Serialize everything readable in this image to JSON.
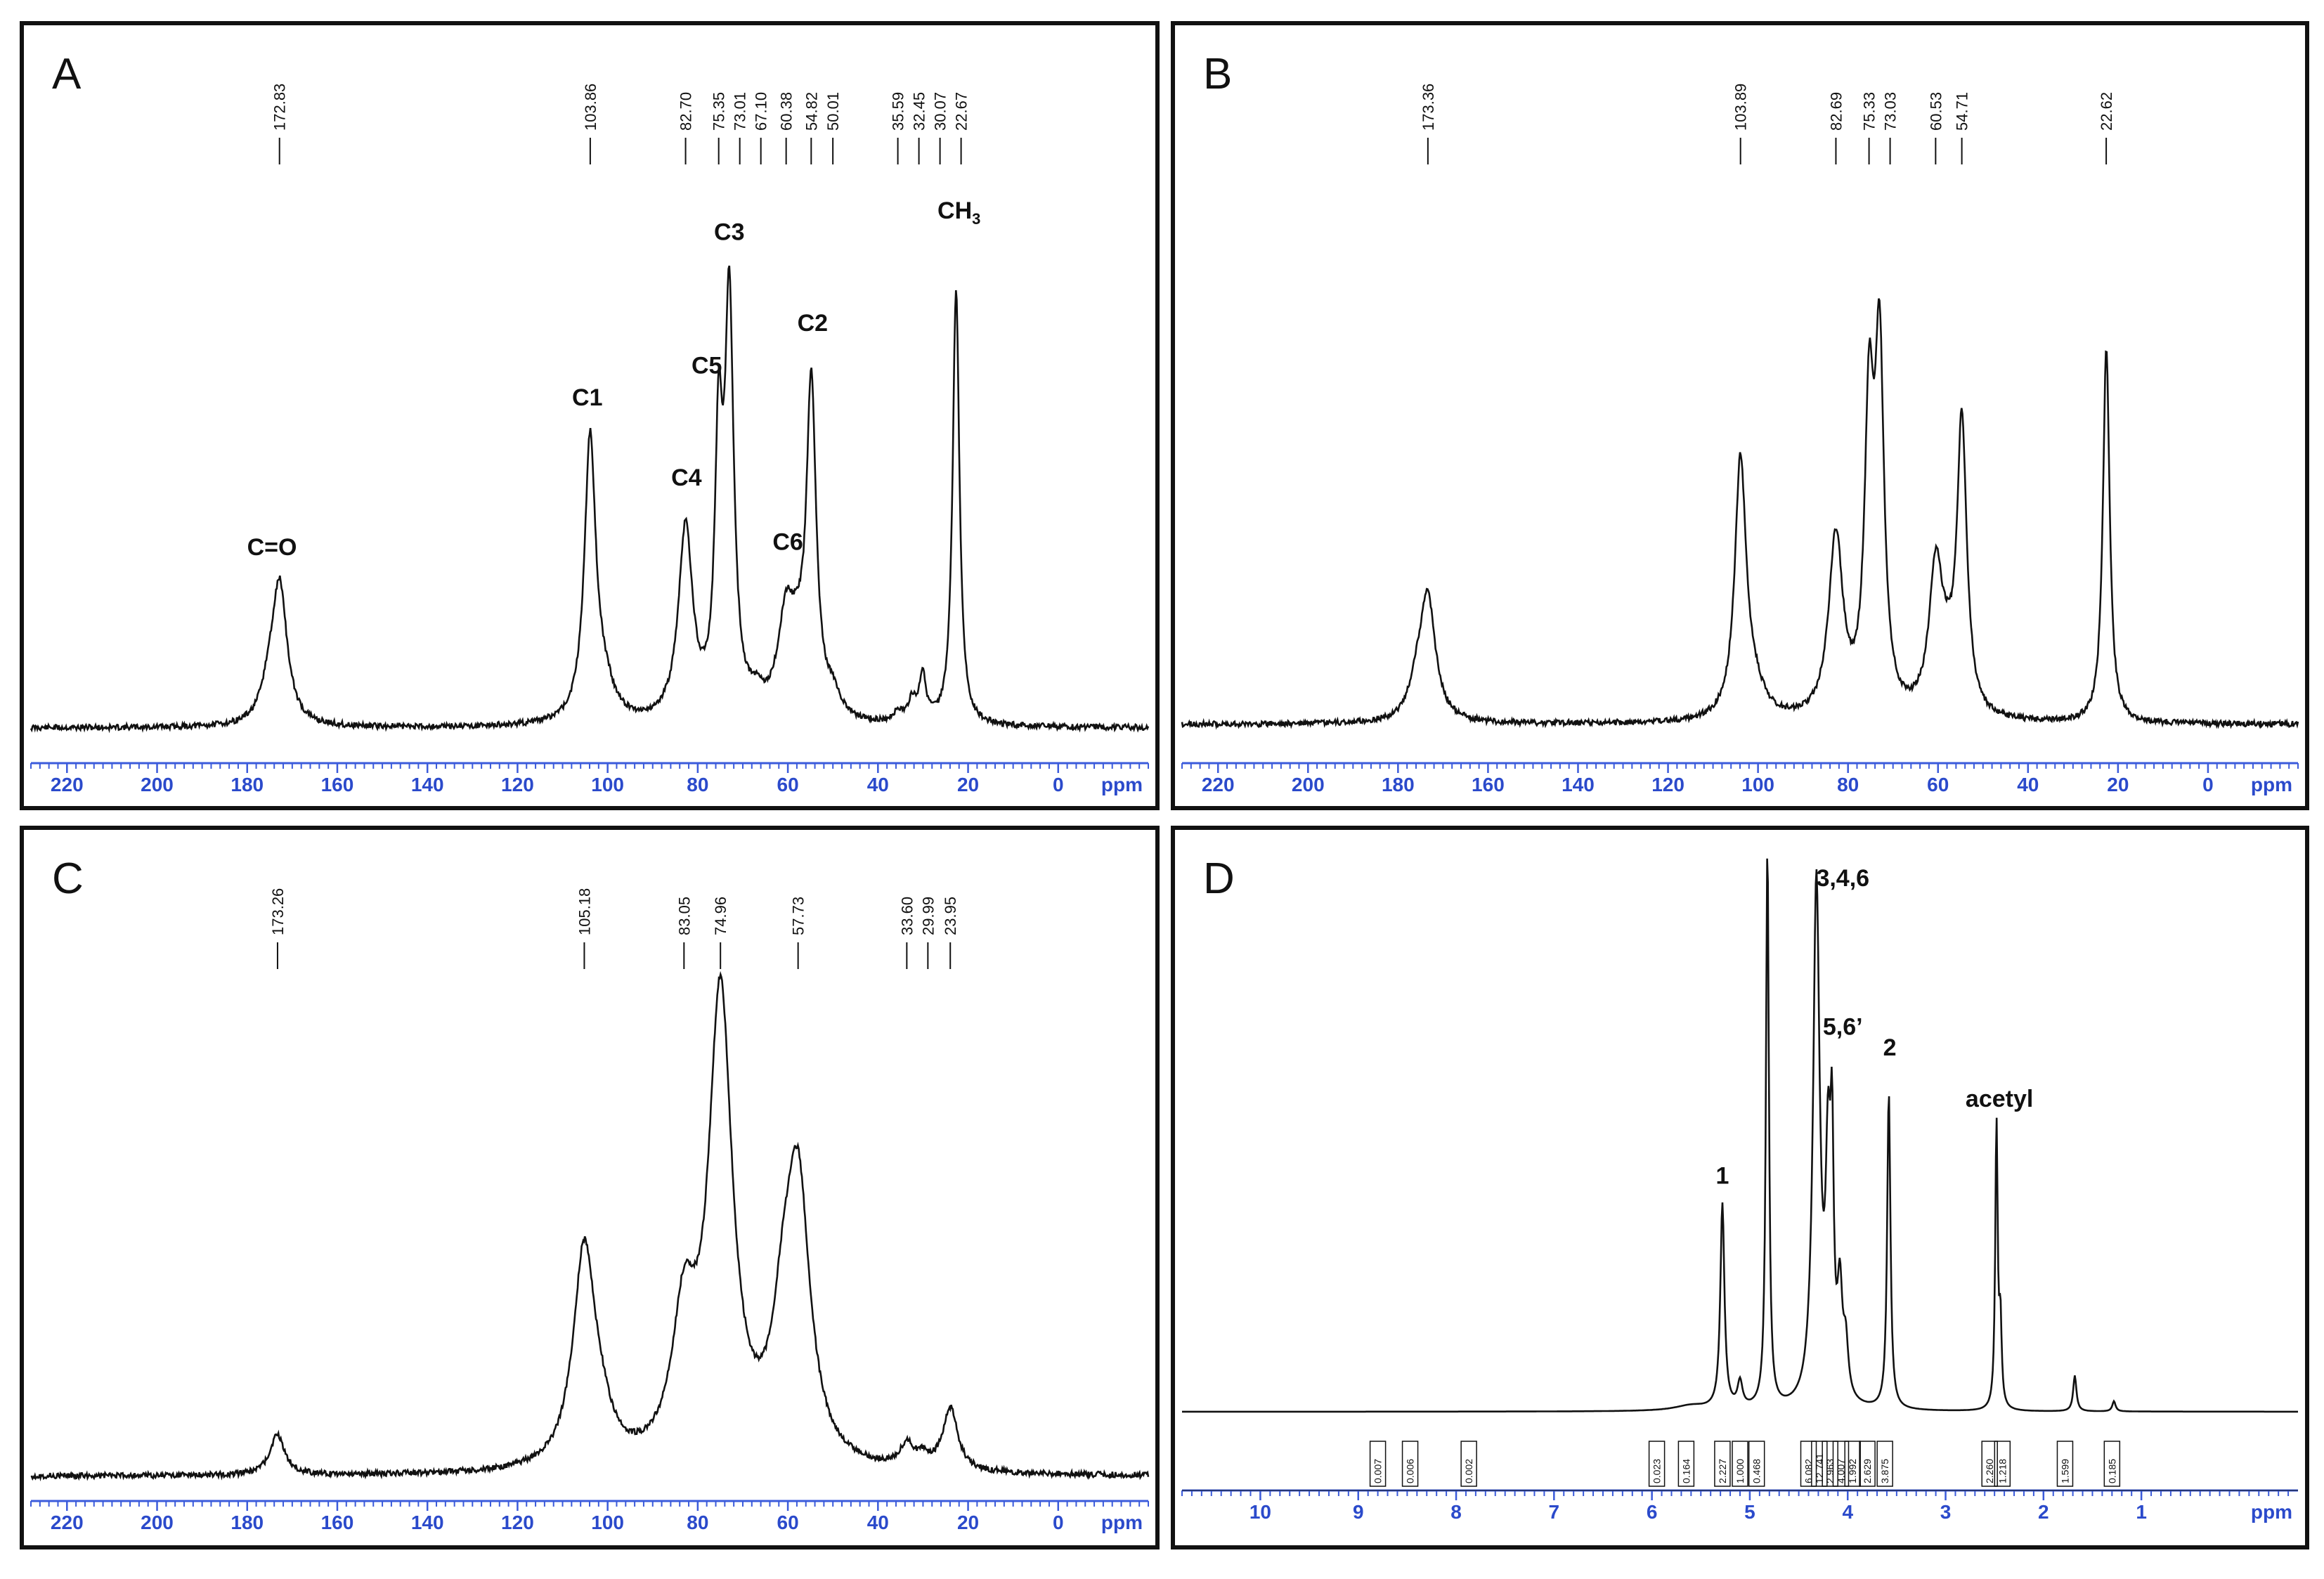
{
  "chart_data": [
    {
      "type": "line",
      "panel_label": "A",
      "xlim": [
        228,
        -20
      ],
      "ticks": [
        220,
        200,
        180,
        160,
        140,
        120,
        100,
        80,
        60,
        40,
        20,
        0
      ],
      "tick_labels": [
        "220",
        "200",
        "180",
        "160",
        "140",
        "120",
        "100",
        "80",
        "60",
        "40",
        "20",
        "0"
      ],
      "unit_label": "ppm",
      "peak_labels": [
        "172.83",
        "103.86",
        "82.70",
        "75.35",
        "73.01",
        "67.10",
        "60.38",
        "54.82",
        "50.01",
        "35.59",
        "32.45",
        "30.07",
        "22.67"
      ],
      "peak_positions": [
        172.83,
        103.86,
        82.7,
        75.35,
        73.01,
        67.1,
        60.38,
        54.82,
        50.01,
        35.59,
        32.45,
        30.07,
        22.67
      ],
      "annotations": [
        {
          "text": "C=O",
          "x": 174.5,
          "y": 0.3
        },
        {
          "text": "C1",
          "x": 104.5,
          "y": 0.58
        },
        {
          "text": "C4",
          "x": 82.5,
          "y": 0.43
        },
        {
          "text": "C5",
          "x": 78.0,
          "y": 0.64
        },
        {
          "text": "C3",
          "x": 73.0,
          "y": 0.89
        },
        {
          "text": "C6",
          "x": 60.0,
          "y": 0.31
        },
        {
          "text": "C2",
          "x": 54.5,
          "y": 0.72
        },
        {
          "text": "CH",
          "sub": "3",
          "x": 22.0,
          "y": 0.93
        }
      ],
      "peaks": [
        {
          "pos": 172.8,
          "h": 0.26,
          "w": 2.0
        },
        {
          "pos": 175.2,
          "h": 0.05,
          "w": 2.0
        },
        {
          "pos": 103.9,
          "h": 0.52,
          "w": 1.5
        },
        {
          "pos": 101.0,
          "h": 0.06,
          "w": 3.0
        },
        {
          "pos": 82.7,
          "h": 0.36,
          "w": 1.9
        },
        {
          "pos": 75.35,
          "h": 0.48,
          "w": 1.0
        },
        {
          "pos": 73.0,
          "h": 0.76,
          "w": 1.2
        },
        {
          "pos": 67.1,
          "h": 0.03,
          "w": 2.0
        },
        {
          "pos": 60.4,
          "h": 0.18,
          "w": 2.2
        },
        {
          "pos": 57.8,
          "h": 0.08,
          "w": 2.0
        },
        {
          "pos": 54.8,
          "h": 0.61,
          "w": 1.3
        },
        {
          "pos": 50.0,
          "h": 0.04,
          "w": 2.0
        },
        {
          "pos": 35.6,
          "h": 0.02,
          "w": 1.2
        },
        {
          "pos": 32.45,
          "h": 0.04,
          "w": 1.0
        },
        {
          "pos": 30.07,
          "h": 0.09,
          "w": 0.9
        },
        {
          "pos": 22.67,
          "h": 0.82,
          "w": 0.9
        }
      ]
    },
    {
      "type": "line",
      "panel_label": "B",
      "xlim": [
        228,
        -20
      ],
      "ticks": [
        220,
        200,
        180,
        160,
        140,
        120,
        100,
        80,
        60,
        40,
        20,
        0
      ],
      "tick_labels": [
        "220",
        "200",
        "180",
        "160",
        "140",
        "120",
        "100",
        "80",
        "60",
        "40",
        "20",
        "0"
      ],
      "unit_label": "ppm",
      "peak_labels": [
        "173.36",
        "103.89",
        "82.69",
        "75.33",
        "73.03",
        "60.53",
        "54.71",
        "22.62"
      ],
      "peak_positions": [
        173.36,
        103.89,
        82.69,
        75.33,
        73.03,
        60.53,
        54.71,
        22.62
      ],
      "annotations": [],
      "peaks": [
        {
          "pos": 173.4,
          "h": 0.23,
          "w": 2.1
        },
        {
          "pos": 175.8,
          "h": 0.05,
          "w": 2.0
        },
        {
          "pos": 103.9,
          "h": 0.48,
          "w": 1.5
        },
        {
          "pos": 101.0,
          "h": 0.05,
          "w": 3.0
        },
        {
          "pos": 82.7,
          "h": 0.34,
          "w": 1.9
        },
        {
          "pos": 75.3,
          "h": 0.55,
          "w": 1.2
        },
        {
          "pos": 73.0,
          "h": 0.66,
          "w": 1.2
        },
        {
          "pos": 60.5,
          "h": 0.27,
          "w": 1.8
        },
        {
          "pos": 58.0,
          "h": 0.06,
          "w": 2.0
        },
        {
          "pos": 54.7,
          "h": 0.55,
          "w": 1.3
        },
        {
          "pos": 22.6,
          "h": 0.71,
          "w": 0.9
        }
      ]
    },
    {
      "type": "line",
      "panel_label": "C",
      "xlim": [
        228,
        -20
      ],
      "ticks": [
        220,
        200,
        180,
        160,
        140,
        120,
        100,
        80,
        60,
        40,
        20,
        0
      ],
      "tick_labels": [
        "220",
        "200",
        "180",
        "160",
        "140",
        "120",
        "100",
        "80",
        "60",
        "40",
        "20",
        "0"
      ],
      "unit_label": "ppm",
      "peak_labels": [
        "173.26",
        "105.18",
        "83.05",
        "74.96",
        "57.73",
        "33.60",
        "29.99",
        "23.95"
      ],
      "peak_positions": [
        173.26,
        105.18,
        83.05,
        74.96,
        57.73,
        33.6,
        29.99,
        23.95
      ],
      "annotations": [],
      "peaks": [
        {
          "pos": 173.3,
          "h": 0.07,
          "w": 2.0
        },
        {
          "pos": 105.2,
          "h": 0.38,
          "w": 3.0
        },
        {
          "pos": 101.5,
          "h": 0.05,
          "w": 3.0
        },
        {
          "pos": 83.0,
          "h": 0.24,
          "w": 3.2
        },
        {
          "pos": 74.96,
          "h": 0.82,
          "w": 3.2
        },
        {
          "pos": 61.0,
          "h": 0.18,
          "w": 3.0
        },
        {
          "pos": 57.7,
          "h": 0.46,
          "w": 3.2
        },
        {
          "pos": 33.6,
          "h": 0.04,
          "w": 1.8
        },
        {
          "pos": 29.99,
          "h": 0.02,
          "w": 1.6
        },
        {
          "pos": 23.95,
          "h": 0.11,
          "w": 2.0
        }
      ]
    },
    {
      "type": "line",
      "panel_label": "D",
      "xlim": [
        10.8,
        -0.6
      ],
      "ticks": [
        10,
        9,
        8,
        7,
        6,
        5,
        4,
        3,
        2,
        1
      ],
      "tick_labels": [
        "10",
        "9",
        "8",
        "7",
        "6",
        "5",
        "4",
        "3",
        "2",
        "1"
      ],
      "unit_label": "ppm",
      "integrals": [
        {
          "text": "0.007",
          "x": 8.8
        },
        {
          "text": "0.006",
          "x": 8.47
        },
        {
          "text": "0.002",
          "x": 7.87
        },
        {
          "text": "0.023",
          "x": 5.95
        },
        {
          "text": "0.164",
          "x": 5.65
        },
        {
          "text": "2.227",
          "x": 5.28
        },
        {
          "text": "1.000",
          "x": 5.1
        },
        {
          "text": "0.468",
          "x": 4.93
        },
        {
          "text": "6.082",
          "x": 4.4
        },
        {
          "text": "12.741",
          "x": 4.29
        },
        {
          "text": "2.963",
          "x": 4.18
        },
        {
          "text": "4.007",
          "x": 4.07
        },
        {
          "text": "1.992",
          "x": 3.95
        },
        {
          "text": "2.629",
          "x": 3.8
        },
        {
          "text": "3.875",
          "x": 3.62
        },
        {
          "text": "2.260",
          "x": 2.55
        },
        {
          "text": "1.218",
          "x": 2.42
        },
        {
          "text": "1.599",
          "x": 1.78
        },
        {
          "text": "0.185",
          "x": 1.3
        }
      ],
      "annotations": [
        {
          "text": "1",
          "x": 5.28,
          "y": 0.42
        },
        {
          "text": "3,4,6",
          "x": 4.05,
          "y": 1.0
        },
        {
          "text": "5,6’",
          "x": 4.05,
          "y": 0.71
        },
        {
          "text": "2",
          "x": 3.57,
          "y": 0.67
        },
        {
          "text": "acetyl",
          "x": 2.45,
          "y": 0.57
        }
      ],
      "peaks": [
        {
          "pos": 5.28,
          "h": 0.4,
          "w": 0.025
        },
        {
          "pos": 5.1,
          "h": 0.05,
          "w": 0.03
        },
        {
          "pos": 4.82,
          "h": 1.1,
          "w": 0.018
        },
        {
          "pos": 4.32,
          "h": 1.02,
          "w": 0.04
        },
        {
          "pos": 4.2,
          "h": 0.43,
          "w": 0.03
        },
        {
          "pos": 4.16,
          "h": 0.42,
          "w": 0.02
        },
        {
          "pos": 4.08,
          "h": 0.2,
          "w": 0.03
        },
        {
          "pos": 4.02,
          "h": 0.1,
          "w": 0.03
        },
        {
          "pos": 3.58,
          "h": 0.62,
          "w": 0.02
        },
        {
          "pos": 2.48,
          "h": 0.56,
          "w": 0.015
        },
        {
          "pos": 2.44,
          "h": 0.16,
          "w": 0.015
        },
        {
          "pos": 1.68,
          "h": 0.07,
          "w": 0.02
        },
        {
          "pos": 1.28,
          "h": 0.02,
          "w": 0.02
        },
        {
          "pos": 5.6,
          "h": 0.01,
          "w": 0.2
        }
      ]
    }
  ]
}
